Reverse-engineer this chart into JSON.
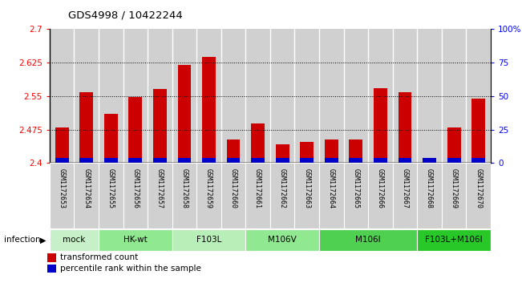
{
  "title": "GDS4998 / 10422244",
  "samples": [
    "GSM1172653",
    "GSM1172654",
    "GSM1172655",
    "GSM1172656",
    "GSM1172657",
    "GSM1172658",
    "GSM1172659",
    "GSM1172660",
    "GSM1172661",
    "GSM1172662",
    "GSM1172663",
    "GSM1172664",
    "GSM1172665",
    "GSM1172666",
    "GSM1172667",
    "GSM1172668",
    "GSM1172669",
    "GSM1172670"
  ],
  "red_values": [
    2.48,
    2.558,
    2.51,
    2.548,
    2.565,
    2.62,
    2.638,
    2.452,
    2.488,
    2.442,
    2.448,
    2.453,
    2.453,
    2.568,
    2.558,
    2.408,
    2.48,
    2.545
  ],
  "blue_values": [
    4,
    4,
    4,
    4,
    4,
    4,
    4,
    4,
    4,
    4,
    4,
    4,
    4,
    4,
    4,
    4,
    4,
    4
  ],
  "ylim_left": [
    2.4,
    2.7
  ],
  "ylim_right": [
    0,
    100
  ],
  "yticks_left": [
    2.4,
    2.475,
    2.55,
    2.625,
    2.7
  ],
  "yticks_right": [
    0,
    25,
    50,
    75,
    100
  ],
  "ytick_labels_right": [
    "0",
    "25",
    "50",
    "75",
    "100%"
  ],
  "groups": [
    {
      "label": "mock",
      "color": "#c8f0c8",
      "start": 0,
      "end": 1
    },
    {
      "label": "HK-wt",
      "color": "#90e890",
      "start": 2,
      "end": 4
    },
    {
      "label": "F103L",
      "color": "#b8eeb8",
      "start": 5,
      "end": 7
    },
    {
      "label": "M106V",
      "color": "#90e890",
      "start": 8,
      "end": 10
    },
    {
      "label": "M106I",
      "color": "#50d050",
      "start": 11,
      "end": 14
    },
    {
      "label": "F103L+M106I",
      "color": "#28c828",
      "start": 15,
      "end": 17
    }
  ],
  "infection_label": "infection",
  "legend_red": "transformed count",
  "legend_blue": "percentile rank within the sample",
  "bar_color_red": "#cc0000",
  "bar_color_blue": "#0000cc",
  "bar_width": 0.55,
  "base_value": 2.4,
  "bg_color_bars": "#d0d0d0",
  "bg_color_plot": "#ffffff"
}
